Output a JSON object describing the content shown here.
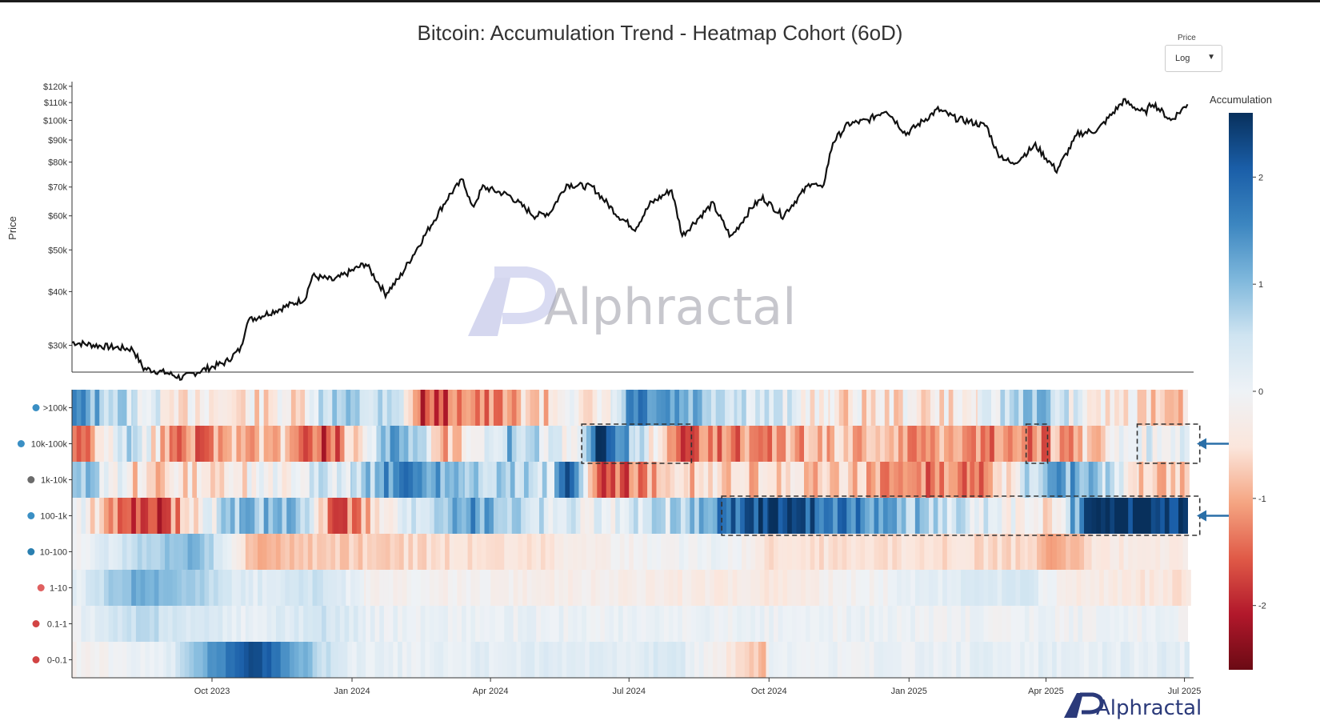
{
  "title": "Bitcoin: Accumulation Trend - Heatmap Cohort (6oD)",
  "controls": {
    "price_scale_label": "Price",
    "price_scale_value": "Log"
  },
  "watermark": {
    "center_text": "Alphractal",
    "corner_text": "Alphractal",
    "mark_letters": "AP"
  },
  "chart_data": [
    {
      "type": "line",
      "ylabel": "Price",
      "yscale": "log",
      "ylim": [
        26000,
        122000
      ],
      "y_ticks": [
        30000,
        40000,
        50000,
        60000,
        70000,
        80000,
        90000,
        100000,
        110000,
        120000
      ],
      "y_tick_labels": [
        "$30k",
        "$40k",
        "$50k",
        "$60k",
        "$70k",
        "$80k",
        "$90k",
        "$100k",
        "$110k",
        "$120k"
      ],
      "xlim": [
        "2023-07-01",
        "2025-07-07"
      ],
      "series": [
        {
          "color": "#111111",
          "points": [
            [
              "2023-07-01",
              30500
            ],
            [
              "2023-07-20",
              29900
            ],
            [
              "2023-08-10",
              29400
            ],
            [
              "2023-08-17",
              26500
            ],
            [
              "2023-09-01",
              25900
            ],
            [
              "2023-09-11",
              25200
            ],
            [
              "2023-09-25",
              26300
            ],
            [
              "2023-10-10",
              27400
            ],
            [
              "2023-10-20",
              29500
            ],
            [
              "2023-10-24",
              34200
            ],
            [
              "2023-11-15",
              36500
            ],
            [
              "2023-12-01",
              38500
            ],
            [
              "2023-12-06",
              43500
            ],
            [
              "2023-12-20",
              42500
            ],
            [
              "2024-01-10",
              46500
            ],
            [
              "2024-01-23",
              39500
            ],
            [
              "2024-02-01",
              43000
            ],
            [
              "2024-02-15",
              52000
            ],
            [
              "2024-02-28",
              62000
            ],
            [
              "2024-03-05",
              67000
            ],
            [
              "2024-03-14",
              73000
            ],
            [
              "2024-03-20",
              62500
            ],
            [
              "2024-03-27",
              70000
            ],
            [
              "2024-04-13",
              67000
            ],
            [
              "2024-04-30",
              60000
            ],
            [
              "2024-05-10",
              61000
            ],
            [
              "2024-05-21",
              71000
            ],
            [
              "2024-06-07",
              70000
            ],
            [
              "2024-06-24",
              60000
            ],
            [
              "2024-07-05",
              56000
            ],
            [
              "2024-07-15",
              64000
            ],
            [
              "2024-07-29",
              69000
            ],
            [
              "2024-08-05",
              54000
            ],
            [
              "2024-08-15",
              59000
            ],
            [
              "2024-08-25",
              64000
            ],
            [
              "2024-09-06",
              53500
            ],
            [
              "2024-09-20",
              63000
            ],
            [
              "2024-09-27",
              66000
            ],
            [
              "2024-10-10",
              60000
            ],
            [
              "2024-10-29",
              72000
            ],
            [
              "2024-11-05",
              69000
            ],
            [
              "2024-11-12",
              89000
            ],
            [
              "2024-11-22",
              98000
            ],
            [
              "2024-12-05",
              100000
            ],
            [
              "2024-12-17",
              106000
            ],
            [
              "2024-12-30",
              93000
            ],
            [
              "2025-01-20",
              106000
            ],
            [
              "2025-02-01",
              101000
            ],
            [
              "2025-02-21",
              97000
            ],
            [
              "2025-02-28",
              84000
            ],
            [
              "2025-03-10",
              79000
            ],
            [
              "2025-03-25",
              87500
            ],
            [
              "2025-04-08",
              76500
            ],
            [
              "2025-04-22",
              93000
            ],
            [
              "2025-05-05",
              95000
            ],
            [
              "2025-05-22",
              111000
            ],
            [
              "2025-06-05",
              104000
            ],
            [
              "2025-06-10",
              110000
            ],
            [
              "2025-06-22",
              100000
            ],
            [
              "2025-07-03",
              109000
            ]
          ]
        }
      ]
    },
    {
      "type": "heatmap",
      "x_ticks": [
        "2023-10-01",
        "2024-01-01",
        "2024-04-01",
        "2024-07-01",
        "2024-10-01",
        "2025-01-01",
        "2025-04-01",
        "2025-07-01"
      ],
      "x_tick_labels": [
        "Oct 2023",
        "Jan 2024",
        "Apr 2024",
        "Jul 2024",
        "Oct 2024",
        "Jan 2025",
        "Apr 2025",
        "Jul 2025"
      ],
      "xlim": [
        "2023-07-01",
        "2025-07-07"
      ],
      "rows": [
        ">100k",
        "10k-100k",
        "1k-10k",
        "100-1k",
        "10-100",
        "1-10",
        "0.1-1",
        "0-0.1"
      ],
      "row_icon_colors": [
        "#3a8fc4",
        "#3a8fc4",
        "#6b6b6b",
        "#3a8fc4",
        "#2a7fb0",
        "#e06060",
        "#d24444",
        "#d24444"
      ],
      "colorbar": {
        "label": "Accumulation",
        "range": [
          -2.6,
          2.6
        ],
        "ticks": [
          2,
          1,
          0,
          -1,
          -2
        ],
        "tick_labels": [
          "2",
          "1",
          "0",
          "-1",
          "-2"
        ],
        "colors": [
          "#6b0a14",
          "#b2182b",
          "#e05a47",
          "#f5a582",
          "#fbe6dc",
          "#eef2f6",
          "#cfe4f1",
          "#7fb8dc",
          "#3c86c0",
          "#1a5ea8",
          "#08305c"
        ]
      },
      "segments": [
        [
          [
            "2023-07-01",
            1.4
          ],
          [
            "2023-08-10",
            0.4
          ],
          [
            "2023-09-20",
            -0.5
          ],
          [
            "2023-12-01",
            -0.3
          ],
          [
            "2023-12-10",
            0.8
          ],
          [
            "2024-02-01",
            0.3
          ],
          [
            "2024-02-15",
            -1.8
          ],
          [
            "2024-05-20",
            -0.4
          ],
          [
            "2024-06-20",
            0.1
          ],
          [
            "2024-07-01",
            1.9
          ],
          [
            "2024-09-10",
            0.6
          ],
          [
            "2024-10-10",
            0.2
          ],
          [
            "2024-11-10",
            -0.5
          ],
          [
            "2025-02-15",
            -0.3
          ],
          [
            "2025-03-20",
            1.2
          ],
          [
            "2025-05-01",
            -0.4
          ],
          [
            "2025-07-03",
            -0.6
          ]
        ],
        [
          [
            "2023-07-01",
            -1.8
          ],
          [
            "2023-08-10",
            0.8
          ],
          [
            "2023-09-05",
            -1.5
          ],
          [
            "2023-11-15",
            -0.7
          ],
          [
            "2023-12-15",
            -1.8
          ],
          [
            "2024-02-01",
            1.5
          ],
          [
            "2024-03-01",
            -0.8
          ],
          [
            "2024-04-15",
            1.0
          ],
          [
            "2024-05-25",
            -0.4
          ],
          [
            "2024-06-10",
            2.4
          ],
          [
            "2024-07-05",
            0.6
          ],
          [
            "2024-08-01",
            -1.6
          ],
          [
            "2024-11-10",
            -0.8
          ],
          [
            "2025-03-20",
            -1.4
          ],
          [
            "2025-04-01",
            -1.2
          ],
          [
            "2025-06-10",
            0.2
          ],
          [
            "2025-07-03",
            0.2
          ]
        ],
        [
          [
            "2023-07-01",
            1.2
          ],
          [
            "2023-08-10",
            -0.6
          ],
          [
            "2023-11-01",
            -0.3
          ],
          [
            "2024-01-01",
            0.5
          ],
          [
            "2024-02-01",
            1.7
          ],
          [
            "2024-03-15",
            1.0
          ],
          [
            "2024-05-10",
            0.4
          ],
          [
            "2024-05-20",
            2.2
          ],
          [
            "2024-06-10",
            -1.8
          ],
          [
            "2024-08-10",
            -0.7
          ],
          [
            "2024-11-10",
            -0.8
          ],
          [
            "2025-02-10",
            -1.5
          ],
          [
            "2025-04-05",
            1.4
          ],
          [
            "2025-05-10",
            0.6
          ],
          [
            "2025-06-01",
            -0.6
          ],
          [
            "2025-07-03",
            -0.8
          ]
        ],
        [
          [
            "2023-07-01",
            0.1
          ],
          [
            "2023-08-20",
            -2.0
          ],
          [
            "2023-10-20",
            1.2
          ],
          [
            "2023-12-01",
            0.6
          ],
          [
            "2023-12-20",
            -1.6
          ],
          [
            "2024-03-10",
            1.5
          ],
          [
            "2024-05-15",
            0.3
          ],
          [
            "2024-06-10",
            0.1
          ],
          [
            "2024-08-01",
            0.5
          ],
          [
            "2024-09-06",
            1.8
          ],
          [
            "2024-10-01",
            2.5
          ],
          [
            "2025-04-02",
            -0.6
          ],
          [
            "2025-05-01",
            2.5
          ],
          [
            "2025-07-03",
            2.5
          ]
        ],
        [
          [
            "2023-07-01",
            -0.1
          ],
          [
            "2023-08-10",
            0.6
          ],
          [
            "2023-09-20",
            1.2
          ],
          [
            "2023-10-25",
            -0.9
          ],
          [
            "2024-02-10",
            -0.6
          ],
          [
            "2024-05-01",
            -0.5
          ],
          [
            "2024-06-10",
            -0.2
          ],
          [
            "2024-09-01",
            0.05
          ],
          [
            "2024-10-01",
            -0.5
          ],
          [
            "2025-03-20",
            -0.6
          ],
          [
            "2025-04-05",
            -1.2
          ],
          [
            "2025-05-01",
            -0.4
          ],
          [
            "2025-07-03",
            -0.3
          ]
        ],
        [
          [
            "2023-07-01",
            0.1
          ],
          [
            "2023-08-15",
            1.3
          ],
          [
            "2023-10-25",
            0.2
          ],
          [
            "2023-12-10",
            0.5
          ],
          [
            "2024-01-10",
            -0.15
          ],
          [
            "2024-04-01",
            -0.2
          ],
          [
            "2024-10-01",
            -0.4
          ],
          [
            "2025-03-15",
            0.4
          ],
          [
            "2025-04-15",
            -0.3
          ],
          [
            "2025-07-03",
            -0.5
          ]
        ],
        [
          [
            "2023-07-01",
            0.05
          ],
          [
            "2023-08-15",
            0.6
          ],
          [
            "2023-10-25",
            0.1
          ],
          [
            "2023-12-15",
            0.5
          ],
          [
            "2024-01-10",
            0.1
          ],
          [
            "2024-04-01",
            0.05
          ],
          [
            "2025-04-01",
            0.0
          ],
          [
            "2025-07-03",
            0.0
          ]
        ],
        [
          [
            "2023-07-01",
            -0.2
          ],
          [
            "2023-09-01",
            0.2
          ],
          [
            "2023-10-25",
            2.4
          ],
          [
            "2023-12-20",
            0.3
          ],
          [
            "2024-01-10",
            0.1
          ],
          [
            "2024-08-01",
            0.3
          ],
          [
            "2024-09-26",
            -0.9
          ],
          [
            "2024-10-01",
            0.0
          ],
          [
            "2025-07-03",
            0.2
          ]
        ]
      ],
      "highlights": [
        {
          "row": 1,
          "from": "2024-06-01",
          "to": "2024-08-10",
          "note": "box"
        },
        {
          "row": 1,
          "from": "2025-03-20",
          "to": "2025-04-01",
          "note": "box"
        },
        {
          "row": 1,
          "from": "2025-06-01",
          "to": "2025-07-10",
          "note": "box-arrow"
        },
        {
          "row": 3,
          "from": "2024-09-01",
          "to": "2025-07-10",
          "note": "box-arrow"
        }
      ]
    }
  ]
}
